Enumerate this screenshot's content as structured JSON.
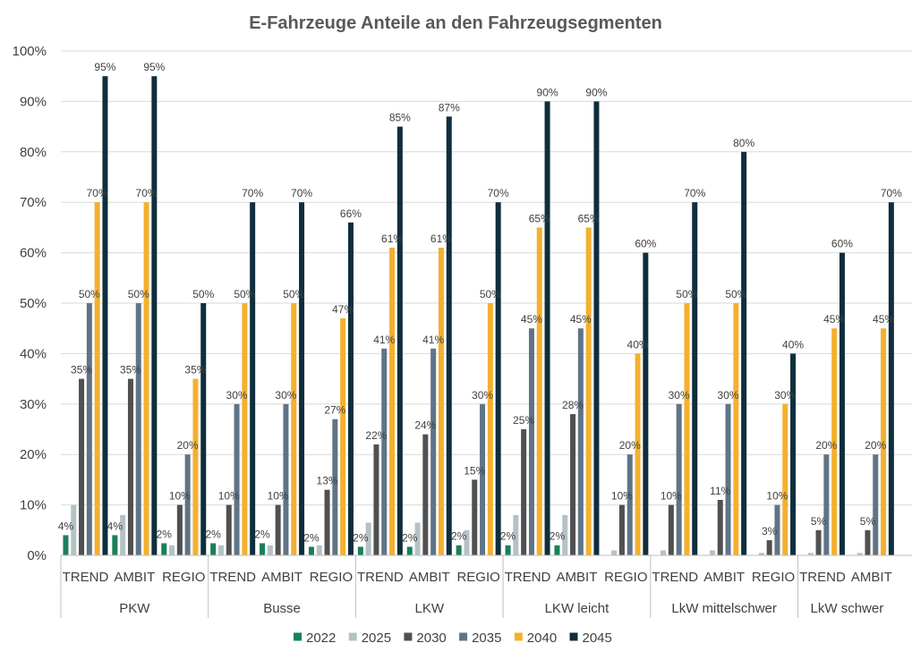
{
  "chart_data": {
    "type": "bar",
    "title": "E-Fahrzeuge Anteile an den Fahrzeugsegmenten",
    "ylim": [
      0,
      100
    ],
    "y_ticks": [
      "0%",
      "10%",
      "20%",
      "30%",
      "40%",
      "50%",
      "60%",
      "70%",
      "80%",
      "90%",
      "100%"
    ],
    "grid": true,
    "legend_position": "bottom",
    "groups": [
      {
        "name": "PKW",
        "categories": [
          "TREND",
          "AMBIT",
          "REGIO"
        ]
      },
      {
        "name": "Busse",
        "categories": [
          "TREND",
          "AMBIT",
          "REGIO"
        ]
      },
      {
        "name": "LKW",
        "categories": [
          "TREND",
          "AMBIT",
          "REGIO"
        ]
      },
      {
        "name": "LKW leicht",
        "categories": [
          "TREND",
          "AMBIT",
          "REGIO"
        ]
      },
      {
        "name": "LkW mittelschwer",
        "categories": [
          "TREND",
          "AMBIT",
          "REGIO"
        ]
      },
      {
        "name": "LkW schwer",
        "categories": [
          "TREND",
          "AMBIT"
        ]
      }
    ],
    "series": [
      {
        "name": "2022",
        "color": "#1a7f5a",
        "values": [
          4,
          4,
          2.4,
          2.4,
          2.4,
          1.7,
          1.7,
          1.7,
          2,
          2,
          2,
          null,
          null,
          null,
          null,
          null,
          null
        ],
        "labels": [
          "4%",
          "4%",
          "2%",
          "2%",
          "2%",
          "2%",
          "2%",
          "2%",
          "2%",
          "2%",
          "2%",
          "",
          "",
          "",
          "",
          "",
          ""
        ]
      },
      {
        "name": "2025",
        "color": "#b4c2c6",
        "values": [
          10,
          8,
          2,
          2,
          2,
          2,
          6.5,
          6.5,
          5,
          8,
          8,
          1,
          1,
          1,
          0.5,
          0.5,
          0.5
        ],
        "labels": [
          "",
          "",
          "",
          "",
          "",
          "",
          "",
          "",
          "",
          "",
          "",
          "",
          "",
          "",
          "",
          "",
          ""
        ]
      },
      {
        "name": "2030",
        "color": "#505050",
        "values": [
          35,
          35,
          10,
          10,
          10,
          13,
          22,
          24,
          15,
          25,
          28,
          10,
          10,
          11,
          3,
          5,
          5
        ],
        "labels": [
          "35%",
          "35%",
          "10%",
          "10%",
          "10%",
          "13%",
          "22%",
          "24%",
          "15%",
          "25%",
          "28%",
          "10%",
          "10%",
          "11%",
          "3%",
          "5%",
          "5%"
        ]
      },
      {
        "name": "2035",
        "color": "#5f7486",
        "values": [
          50,
          50,
          20,
          30,
          30,
          27,
          41,
          41,
          30,
          45,
          45,
          20,
          30,
          30,
          10,
          20,
          20
        ],
        "labels": [
          "50%",
          "50%",
          "20%",
          "30%",
          "30%",
          "27%",
          "41%",
          "41%",
          "30%",
          "45%",
          "45%",
          "20%",
          "30%",
          "30%",
          "10%",
          "20%",
          "20%"
        ]
      },
      {
        "name": "2040",
        "color": "#f4b02f",
        "values": [
          70,
          70,
          35,
          50,
          50,
          47,
          61,
          61,
          50,
          65,
          65,
          40,
          50,
          50,
          30,
          45,
          45
        ],
        "labels": [
          "70%",
          "70%",
          "35%",
          "50%",
          "50%",
          "47%",
          "61%",
          "61%",
          "50%",
          "65%",
          "65%",
          "40%",
          "50%",
          "50%",
          "30%",
          "45%",
          "45%"
        ]
      },
      {
        "name": "2045",
        "color": "#0f2e3d",
        "values": [
          95,
          95,
          50,
          70,
          70,
          66,
          85,
          87,
          70,
          90,
          90,
          60,
          70,
          80,
          40,
          60,
          70
        ],
        "labels": [
          "95%",
          "95%",
          "50%",
          "70%",
          "70%",
          "66%",
          "85%",
          "87%",
          "70%",
          "90%",
          "90%",
          "60%",
          "70%",
          "80%",
          "40%",
          "60%",
          "70%"
        ]
      }
    ],
    "colors": {
      "grid": "#d9d9d9",
      "axis": "#bfbfbf",
      "text": "#404040",
      "title": "#595959"
    }
  }
}
